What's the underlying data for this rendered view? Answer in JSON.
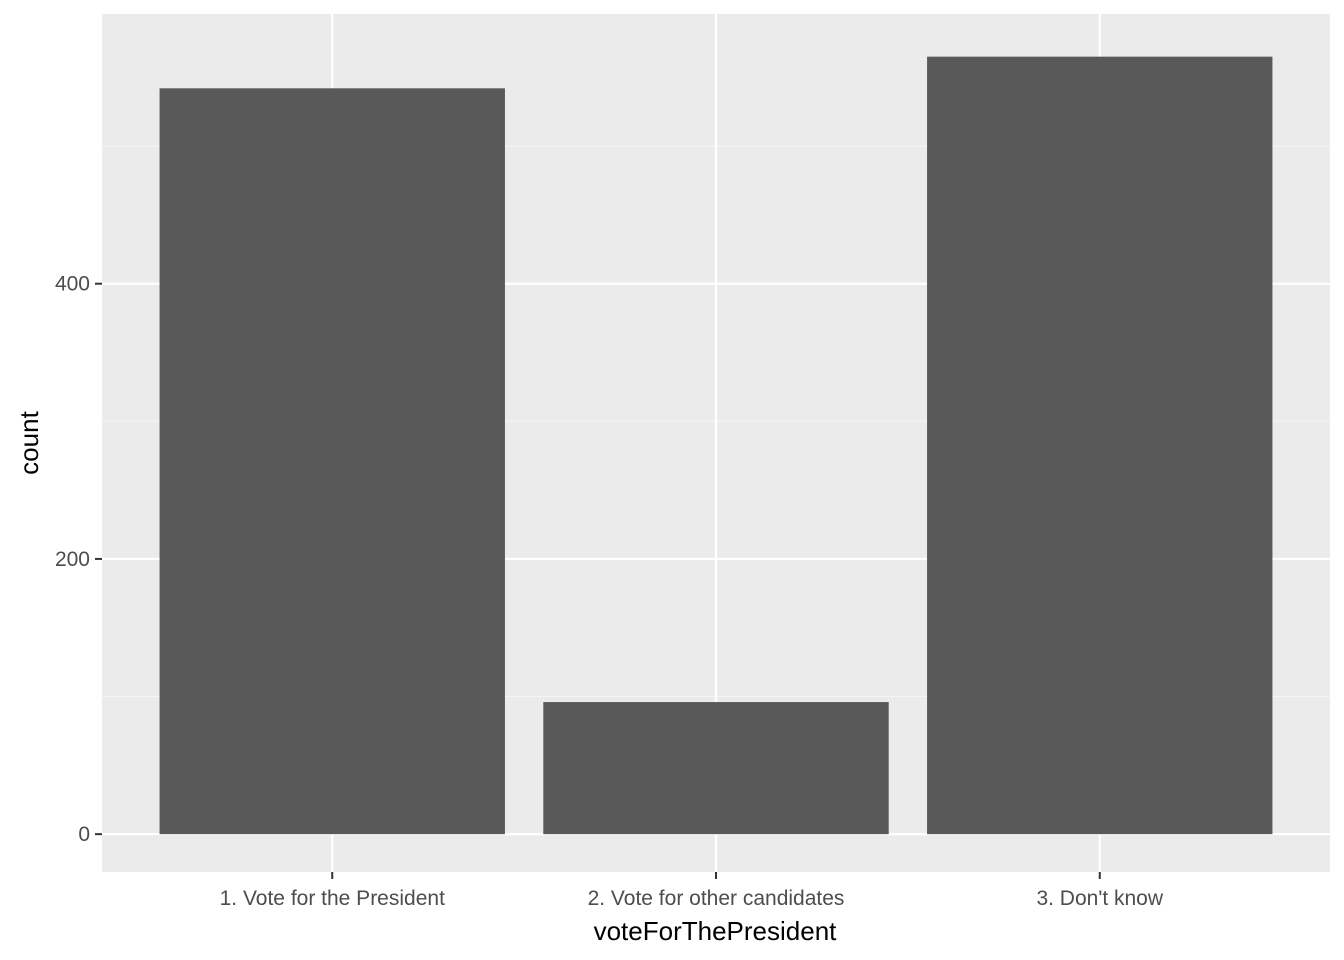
{
  "chart_data": {
    "type": "bar",
    "categories": [
      "1. Vote for the President",
      "2. Vote for other candidates",
      "3. Don't know"
    ],
    "values": [
      542,
      96,
      565
    ],
    "xlabel": "voteForThePresident",
    "ylabel": "count",
    "ylim": [
      -27.5,
      596
    ],
    "yticks": [
      0,
      200,
      400
    ],
    "grid": true,
    "legend": "none"
  },
  "colors": {
    "panel_background": "#ebebeb",
    "grid_major": "#ffffff",
    "grid_minor": "#f5f5f5",
    "bar_fill": "#595959",
    "tick_text": "#4d4d4d",
    "tick_mark": "#333333",
    "title_text": "#000000"
  }
}
